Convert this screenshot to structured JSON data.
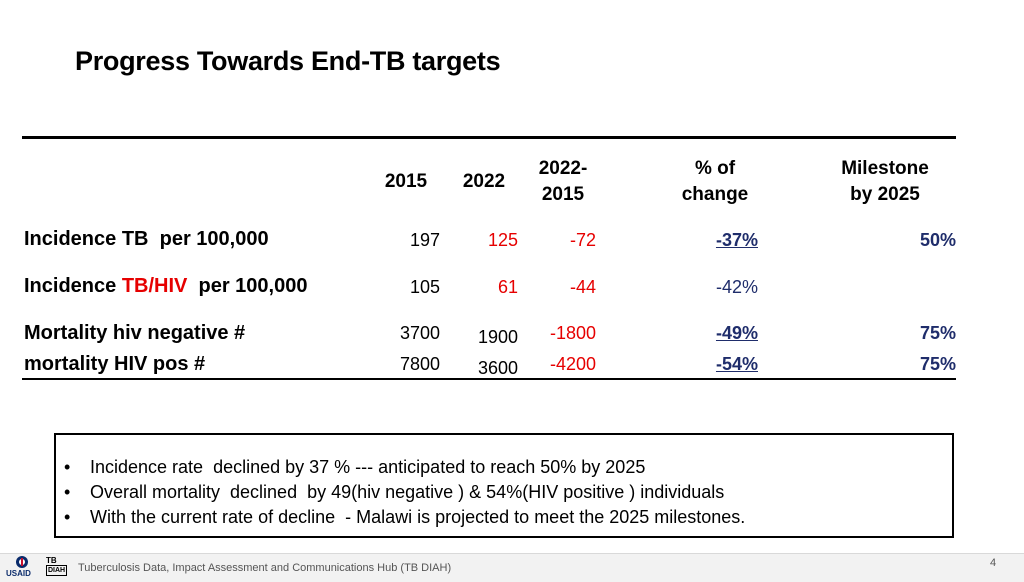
{
  "title": "Progress Towards End-TB targets",
  "table": {
    "headers": {
      "y2015": "2015",
      "y2022": "2022",
      "diff_line1": "2022-",
      "diff_line2": "2015",
      "pct_line1": "% of",
      "pct_line2": "change",
      "milestone_line1": "Milestone",
      "milestone_line2": "by 2025"
    },
    "rows": [
      {
        "label_parts": [
          "Incidence ",
          "TB",
          "  per 100,000"
        ],
        "v2015": "197",
        "v2022": "125",
        "diff": "-72",
        "pct": "-37%",
        "milestone": "50%"
      },
      {
        "label_parts": [
          "Incidence ",
          "TB/HIV",
          "  per 100,000"
        ],
        "v2015": "105",
        "v2022": "61",
        "diff": "-44",
        "pct": "-42%",
        "milestone": ""
      },
      {
        "label": "Mortality hiv negative #",
        "v2015": "3700",
        "v2022": "1900",
        "diff": "-1800",
        "pct": "-49%",
        "milestone": "75%"
      },
      {
        "label": "mortality HIV pos #",
        "v2015": "7800",
        "v2022": "3600",
        "diff": "-4200",
        "pct": "-54%",
        "milestone": "75%"
      }
    ]
  },
  "summary": {
    "bullet": "•",
    "items": [
      "Incidence rate  declined by 37 % --- anticipated to reach 50% by 2025",
      "Overall mortality  declined  by 49(hiv negative ) & 54%(HIV positive ) individuals",
      "With the current rate of decline  - Malawi is projected to meet the 2025 milestones."
    ]
  },
  "footer": {
    "text": "Tuberculosis Data, Impact Assessment and Communications Hub (TB DIAH)",
    "page": "4",
    "usaid_label": "USAID",
    "tb_label_1": "TB",
    "tb_label_2": "DIAH"
  },
  "colors": {
    "red": "#e60000",
    "navy": "#1f2d6b"
  }
}
